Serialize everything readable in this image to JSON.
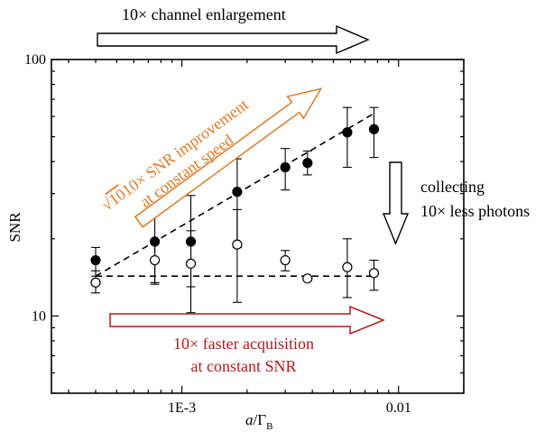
{
  "colors": {
    "orange": "#e07b2a",
    "red": "#b31b1b",
    "black": "#000000"
  },
  "chart_data": {
    "type": "scatter",
    "xscale": "log",
    "yscale": "log",
    "xlim": [
      0.00025,
      0.02
    ],
    "ylim": [
      5,
      100
    ],
    "xlabel_italic": "a",
    "xlabel_rest": "/Γ",
    "xlabel_sub": "B",
    "ylabel": "SNR",
    "xticks": [
      {
        "value": 0.001,
        "label": "1E-3"
      },
      {
        "value": 0.01,
        "label": "0.01"
      }
    ],
    "yticks": [
      {
        "value": 10,
        "label": "10"
      },
      {
        "value": 100,
        "label": "100"
      }
    ],
    "series": [
      {
        "marker": "filled-circle",
        "points": [
          {
            "x": 0.0004,
            "y": 16.5,
            "lo": 14.3,
            "hi": 18.5
          },
          {
            "x": 0.00075,
            "y": 19.5,
            "lo": 13.5,
            "hi": 26.5
          },
          {
            "x": 0.0011,
            "y": 19.5,
            "lo": 13.0,
            "hi": 29.5
          },
          {
            "x": 0.0018,
            "y": 30.5,
            "lo": 18.5,
            "hi": 41.0
          },
          {
            "x": 0.003,
            "y": 38.0,
            "lo": 31.0,
            "hi": 45.0
          },
          {
            "x": 0.0038,
            "y": 39.5,
            "lo": 35.5,
            "hi": 44.0
          },
          {
            "x": 0.0058,
            "y": 52.0,
            "lo": 38.0,
            "hi": 65.0
          },
          {
            "x": 0.0077,
            "y": 53.5,
            "lo": 41.5,
            "hi": 65.0
          }
        ]
      },
      {
        "marker": "open-circle",
        "points": [
          {
            "x": 0.0004,
            "y": 13.5,
            "lo": 12.3,
            "hi": 15.0
          },
          {
            "x": 0.00075,
            "y": 16.5,
            "lo": 13.3,
            "hi": 19.5
          },
          {
            "x": 0.0011,
            "y": 16.0,
            "lo": 10.3,
            "hi": 21.5
          },
          {
            "x": 0.0018,
            "y": 19.0,
            "lo": 11.3,
            "hi": 26.0
          },
          {
            "x": 0.003,
            "y": 16.5,
            "lo": 15.0,
            "hi": 18.0
          },
          {
            "x": 0.0038,
            "y": 14.0,
            "lo": 13.8,
            "hi": 14.2
          },
          {
            "x": 0.0058,
            "y": 15.5,
            "lo": 11.8,
            "hi": 20.0
          },
          {
            "x": 0.0077,
            "y": 14.7,
            "lo": 12.6,
            "hi": 16.5
          }
        ]
      }
    ],
    "fit_lines": [
      {
        "style": "dashed",
        "from": {
          "x": 0.0004,
          "y": 14.3
        },
        "to": {
          "x": 0.0078,
          "y": 62.0
        }
      },
      {
        "style": "dashed",
        "from": {
          "x": 0.0004,
          "y": 14.3
        },
        "to": {
          "x": 0.0078,
          "y": 14.3
        }
      }
    ],
    "annotations": {
      "top": "10× channel enlargement",
      "orange_line1_rest": "10× SNR improvement",
      "orange_line2": "at constant speed",
      "right_line1": "collecting",
      "right_line2": "10× less photons",
      "red_line1": "10× faster acquisition",
      "red_line2": "at constant SNR"
    }
  }
}
